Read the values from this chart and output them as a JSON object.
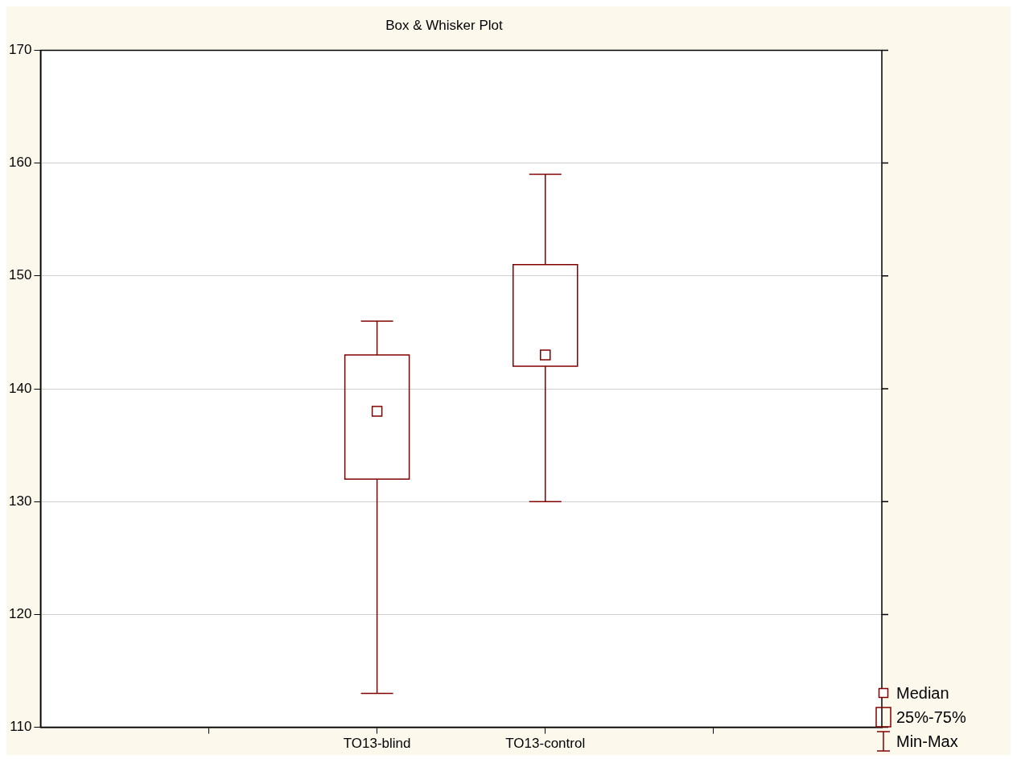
{
  "chart_data": {
    "type": "box",
    "title": "Box & Whisker Plot",
    "categories": [
      "TO13-blind",
      "TO13-control"
    ],
    "boxes": [
      {
        "low": 113,
        "q1": 132,
        "median": 138,
        "q3": 143,
        "high": 146
      },
      {
        "low": 130,
        "q1": 142,
        "median": 143,
        "q3": 151,
        "high": 159
      }
    ],
    "color": "#800000",
    "ylim": [
      110,
      170
    ],
    "yticks": [
      110,
      120,
      130,
      140,
      150,
      160,
      170
    ],
    "grid": "y",
    "annotations": [
      "Median",
      "25%-75%",
      "Min-Max"
    ]
  }
}
